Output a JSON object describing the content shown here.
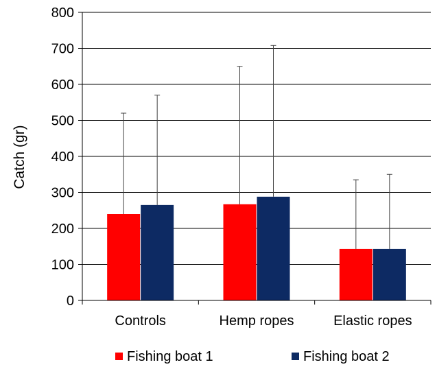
{
  "chart_data": {
    "type": "bar",
    "title": "",
    "xlabel": "",
    "ylabel": "Catch (gr)",
    "ylim": [
      0,
      800
    ],
    "yticks": [
      0,
      100,
      200,
      300,
      400,
      500,
      600,
      700,
      800
    ],
    "grid": true,
    "legend_position": "bottom",
    "categories": [
      "Controls",
      "Hemp ropes",
      "Elastic ropes"
    ],
    "series": [
      {
        "name": "Fishing boat 1",
        "color": "#ff0000",
        "values": [
          240,
          267,
          143
        ],
        "error_upper": [
          520,
          650,
          335
        ]
      },
      {
        "name": "Fishing boat 2",
        "color": "#0d2a63",
        "values": [
          265,
          288,
          143
        ],
        "error_upper": [
          570,
          708,
          350
        ]
      }
    ]
  }
}
